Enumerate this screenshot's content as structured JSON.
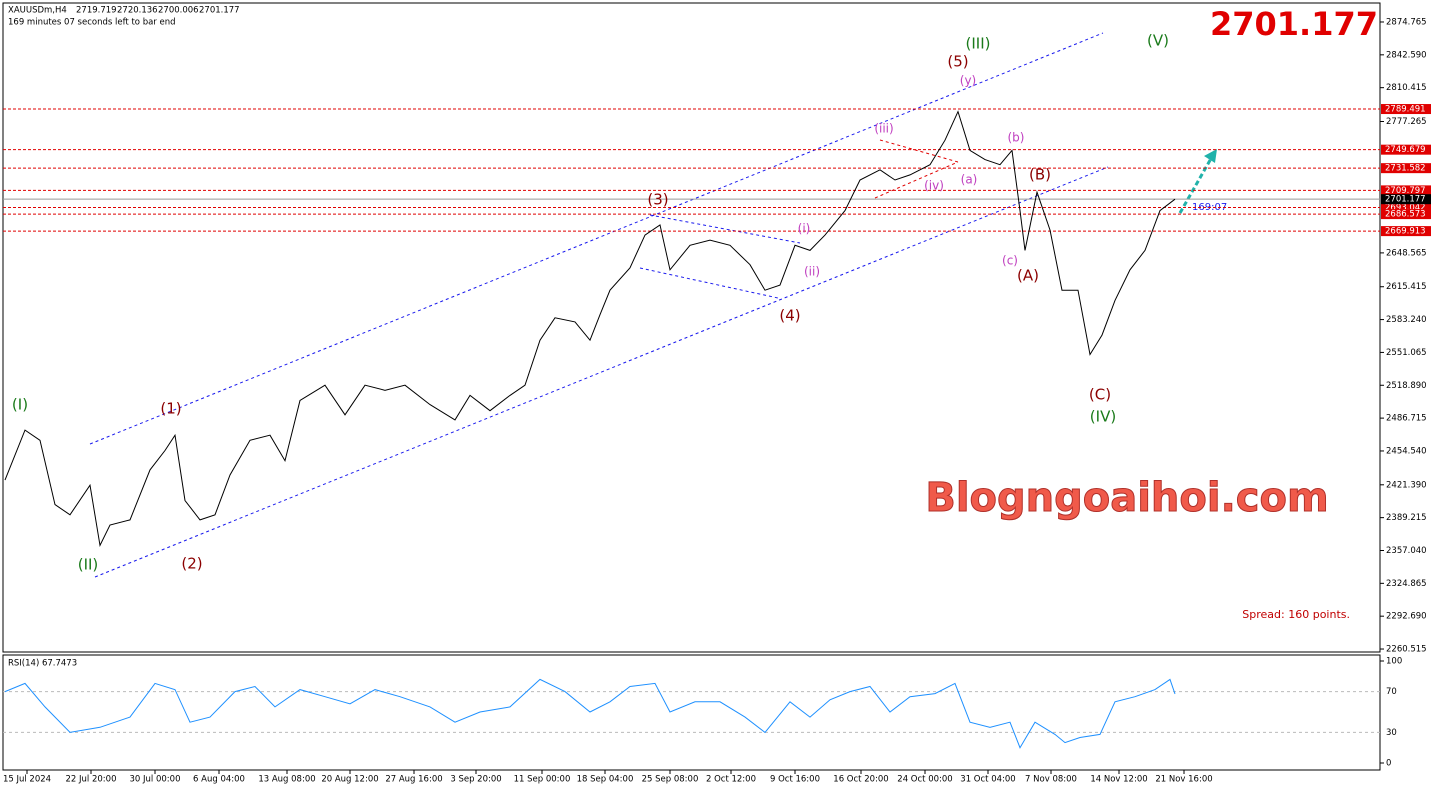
{
  "chart_data": [
    {
      "type": "line",
      "title": "XAUUSDm,H4",
      "ohlc": [
        2719.719,
        2720.136,
        2700.006,
        2701.177
      ],
      "countdown": "169 minutes 07 seconds left to bar end",
      "last_price": 2701.177,
      "x": [
        0,
        10,
        17.5,
        25,
        32.5,
        42.5,
        47.5,
        52.5,
        62.5,
        72.5,
        80,
        85,
        90,
        97.5,
        105,
        112.5,
        122.5,
        132.5,
        140,
        147.5,
        160,
        170,
        180,
        190,
        200,
        212.5,
        225,
        232.5,
        242.5,
        252.5,
        260,
        267.5,
        275,
        285,
        292.5,
        297.5,
        302.5,
        312.5,
        320,
        327.5,
        332.5,
        342.5,
        352.5,
        362.5,
        372.5,
        380,
        387.5,
        395,
        402.5,
        410,
        420,
        427.5,
        437.5,
        445,
        452.5,
        462.5,
        470,
        476.5,
        482.5,
        490,
        497.5,
        503.5,
        507.5,
        510,
        516,
        522.5,
        528.5,
        536.5,
        542.5,
        548.5,
        555,
        562.5,
        570,
        577.5,
        585
      ],
      "series": [
        {
          "color": "#000000",
          "values": [
            2426,
            2475,
            2465,
            2402,
            2392,
            2421,
            2362,
            2382,
            2387,
            2436,
            2455,
            2470,
            2406,
            2387,
            2392,
            2431,
            2465,
            2470,
            2445,
            2504,
            2519,
            2490,
            2519,
            2514,
            2519,
            2500,
            2485,
            2509,
            2494,
            2509,
            2519,
            2563,
            2585,
            2581,
            2563,
            2588,
            2612,
            2634,
            2666,
            2676,
            2632,
            2656,
            2661,
            2656,
            2637,
            2612,
            2617,
            2656,
            2651,
            2666,
            2690,
            2720,
            2730,
            2720,
            2725,
            2735,
            2759,
            2787,
            2749,
            2740,
            2735,
            2749,
            2690,
            2651,
            2708,
            2671,
            2612,
            2612,
            2549,
            2568,
            2602,
            2632,
            2651,
            2690,
            2701.177
          ]
        }
      ],
      "xlim": [
        0,
        687.5
      ],
      "xticks": [
        {
          "value": 11,
          "label": "15 Jul 2024"
        },
        {
          "value": 43,
          "label": "22 Jul 20:00"
        },
        {
          "value": 75,
          "label": "30 Jul 00:00"
        },
        {
          "value": 107,
          "label": "6 Aug 04:00"
        },
        {
          "value": 141,
          "label": "13 Aug 08:00"
        },
        {
          "value": 172.5,
          "label": "20 Aug 12:00"
        },
        {
          "value": 204.5,
          "label": "27 Aug 16:00"
        },
        {
          "value": 235.5,
          "label": "3 Sep 20:00"
        },
        {
          "value": 268.5,
          "label": "11 Sep 00:00"
        },
        {
          "value": 300,
          "label": "18 Sep 04:00"
        },
        {
          "value": 332.5,
          "label": "25 Sep 08:00"
        },
        {
          "value": 363,
          "label": "2 Oct 12:00"
        },
        {
          "value": 395,
          "label": "9 Oct 16:00"
        },
        {
          "value": 428,
          "label": "16 Oct 20:00"
        },
        {
          "value": 460,
          "label": "24 Oct 00:00"
        },
        {
          "value": 491.5,
          "label": "31 Oct 04:00"
        },
        {
          "value": 523,
          "label": "7 Nov 08:00"
        },
        {
          "value": 557,
          "label": "14 Nov 12:00"
        },
        {
          "value": 589.5,
          "label": "21 Nov 16:00"
        }
      ],
      "ylim": [
        2257.6,
        2896.3
      ],
      "yticks": [
        {
          "value": 2874.765,
          "label": "2874.765"
        },
        {
          "value": 2842.59,
          "label": "2842.590"
        },
        {
          "value": 2810.415,
          "label": "2810.415"
        },
        {
          "value": 2777.265,
          "label": "2777.265"
        },
        {
          "value": 2648.565,
          "label": "2648.565"
        },
        {
          "value": 2615.415,
          "label": "2615.415"
        },
        {
          "value": 2583.24,
          "label": "2583.240"
        },
        {
          "value": 2551.065,
          "label": "2551.065"
        },
        {
          "value": 2518.89,
          "label": "2518.890"
        },
        {
          "value": 2486.715,
          "label": "2486.715"
        },
        {
          "value": 2454.54,
          "label": "2454.540"
        },
        {
          "value": 2421.39,
          "label": "2421.390"
        },
        {
          "value": 2389.215,
          "label": "2389.215"
        },
        {
          "value": 2357.04,
          "label": "2357.040"
        },
        {
          "value": 2324.865,
          "label": "2324.865"
        },
        {
          "value": 2292.69,
          "label": "2292.690"
        },
        {
          "value": 2260.515,
          "label": "2260.515"
        }
      ],
      "levels": [
        2789.491,
        2749.679,
        2731.582,
        2709.797,
        2693.042,
        2686.573,
        2669.913
      ],
      "level_color": "#e00000",
      "annotations": [
        {
          "text": "(I)",
          "color": "#1a7a1a"
        },
        {
          "text": "(II)",
          "color": "#1a7a1a"
        },
        {
          "text": "(1)",
          "color": "#8b0000"
        },
        {
          "text": "(2)",
          "color": "#8b0000"
        },
        {
          "text": "(3)",
          "color": "#8b0000"
        },
        {
          "text": "(4)",
          "color": "#8b0000"
        },
        {
          "text": "(5)",
          "color": "#8b0000"
        },
        {
          "text": "(III)",
          "color": "#1a7a1a"
        },
        {
          "text": "(V)",
          "color": "#1a7a1a"
        },
        {
          "text": "(A)",
          "color": "#8b0000"
        },
        {
          "text": "(B)",
          "color": "#8b0000"
        },
        {
          "text": "(C)",
          "color": "#8b0000"
        },
        {
          "text": "(IV)",
          "color": "#1a7a1a"
        },
        {
          "text": "(i)",
          "color": "#c040c0"
        },
        {
          "text": "(ii)",
          "color": "#c040c0"
        },
        {
          "text": "(iii)",
          "color": "#c040c0"
        },
        {
          "text": "(iv)",
          "color": "#c040c0"
        },
        {
          "text": "(y)",
          "color": "#c040c0"
        },
        {
          "text": "(a)",
          "color": "#c040c0"
        },
        {
          "text": "(b)",
          "color": "#c040c0"
        },
        {
          "text": "(c)",
          "color": "#c040c0"
        }
      ],
      "timer": "169:07",
      "spread": "Spread: 160 points.",
      "watermark": "Blogngoaihoi.com"
    },
    {
      "type": "line",
      "title": "RSI(14) 67.7473",
      "x": [
        0,
        10,
        20,
        32.5,
        47.5,
        62.5,
        75,
        85,
        92.5,
        102.5,
        115,
        125,
        135,
        147.5,
        160,
        172.5,
        185,
        197.5,
        212.5,
        225,
        237.5,
        252.5,
        267.5,
        280,
        292.5,
        302.5,
        312.5,
        325,
        332.5,
        345,
        357.5,
        370,
        380,
        392.5,
        402.5,
        412.5,
        422.5,
        432.5,
        442.5,
        452.5,
        465,
        475,
        482.5,
        492.5,
        502.5,
        507.5,
        515,
        525,
        530,
        537.5,
        547.5,
        555,
        565,
        575,
        582.5,
        585
      ],
      "series": [
        {
          "color": "#1e90ff",
          "values": [
            70,
            78,
            55,
            30,
            35,
            45,
            78,
            72,
            40,
            45,
            70,
            75,
            55,
            72,
            65,
            58,
            72,
            65,
            55,
            40,
            50,
            55,
            82,
            70,
            50,
            60,
            75,
            78,
            50,
            60,
            60,
            45,
            30,
            60,
            45,
            62,
            70,
            75,
            50,
            65,
            68,
            78,
            40,
            35,
            40,
            15,
            40,
            28,
            20,
            25,
            28,
            60,
            65,
            72,
            82,
            67.7473
          ]
        }
      ],
      "ylim": [
        0,
        100
      ],
      "yticks": [
        100,
        70,
        30,
        0
      ]
    }
  ]
}
